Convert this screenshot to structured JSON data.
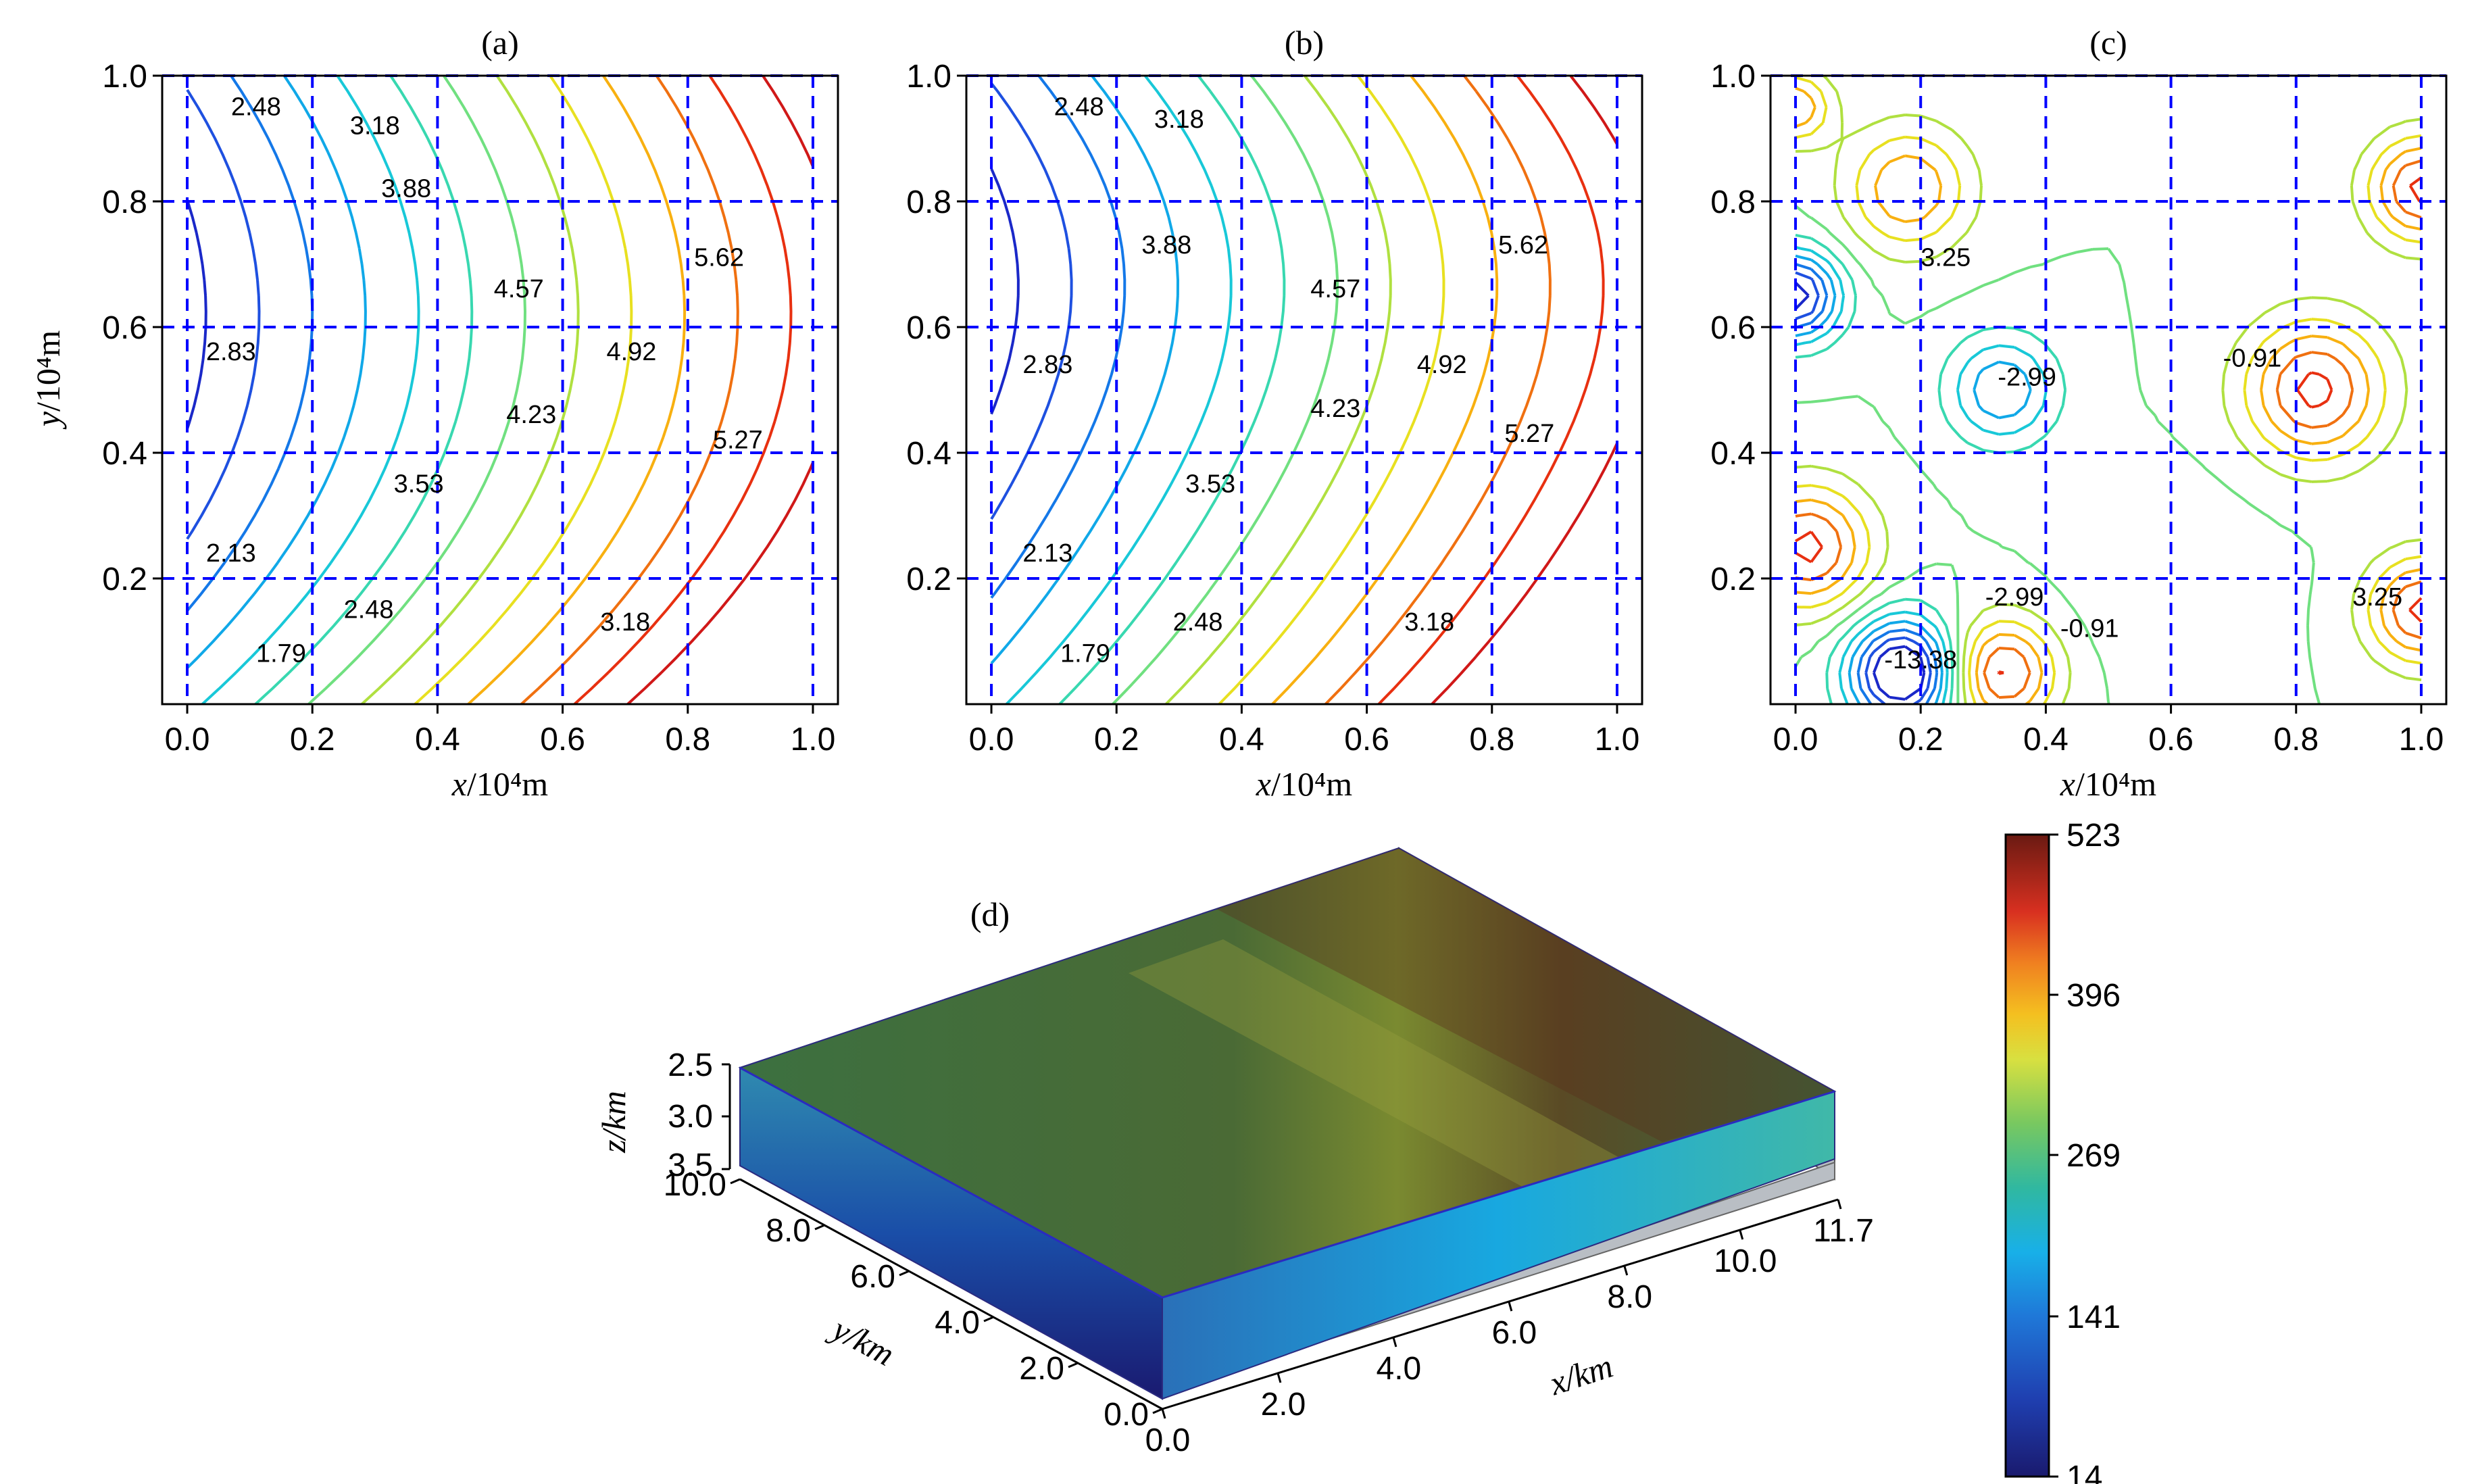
{
  "panels": [
    {
      "id": "a",
      "title": "(a)",
      "xlabel_var": "x",
      "xlabel_unit": "/10⁴m",
      "ylabel_var": "y",
      "ylabel_unit": "/10⁴m",
      "xticks": [
        "0.0",
        "0.2",
        "0.4",
        "0.6",
        "0.8",
        "1.0"
      ],
      "yticks": [
        "1.0",
        "0.8",
        "0.6",
        "0.4",
        "0.2"
      ],
      "labels": [
        {
          "text": "2.48",
          "x": 0.11,
          "y": 0.95
        },
        {
          "text": "3.18",
          "x": 0.3,
          "y": 0.92
        },
        {
          "text": "3.88",
          "x": 0.35,
          "y": 0.82
        },
        {
          "text": "4.57",
          "x": 0.53,
          "y": 0.66
        },
        {
          "text": "5.62",
          "x": 0.85,
          "y": 0.71
        },
        {
          "text": "2.83",
          "x": 0.07,
          "y": 0.56
        },
        {
          "text": "4.92",
          "x": 0.71,
          "y": 0.56
        },
        {
          "text": "4.23",
          "x": 0.55,
          "y": 0.46
        },
        {
          "text": "5.27",
          "x": 0.88,
          "y": 0.42
        },
        {
          "text": "3.53",
          "x": 0.37,
          "y": 0.35
        },
        {
          "text": "2.13",
          "x": 0.07,
          "y": 0.24
        },
        {
          "text": "2.48",
          "x": 0.29,
          "y": 0.15
        },
        {
          "text": "3.18",
          "x": 0.7,
          "y": 0.13
        },
        {
          "text": "1.79",
          "x": 0.15,
          "y": 0.08
        }
      ]
    },
    {
      "id": "b",
      "title": "(b)",
      "xlabel_var": "x",
      "xlabel_unit": "/10⁴m",
      "xticks": [
        "0.0",
        "0.2",
        "0.4",
        "0.6",
        "0.8",
        "1.0"
      ],
      "yticks": [
        "1.0",
        "0.8",
        "0.6",
        "0.4",
        "0.2"
      ],
      "labels": [
        {
          "text": "2.48",
          "x": 0.14,
          "y": 0.95
        },
        {
          "text": "3.18",
          "x": 0.3,
          "y": 0.93
        },
        {
          "text": "3.88",
          "x": 0.28,
          "y": 0.73
        },
        {
          "text": "4.57",
          "x": 0.55,
          "y": 0.66
        },
        {
          "text": "5.62",
          "x": 0.85,
          "y": 0.73
        },
        {
          "text": "2.83",
          "x": 0.09,
          "y": 0.54
        },
        {
          "text": "4.92",
          "x": 0.72,
          "y": 0.54
        },
        {
          "text": "4.23",
          "x": 0.55,
          "y": 0.47
        },
        {
          "text": "5.27",
          "x": 0.86,
          "y": 0.43
        },
        {
          "text": "3.53",
          "x": 0.35,
          "y": 0.35
        },
        {
          "text": "2.13",
          "x": 0.09,
          "y": 0.24
        },
        {
          "text": "2.48",
          "x": 0.33,
          "y": 0.13
        },
        {
          "text": "3.18",
          "x": 0.7,
          "y": 0.13
        },
        {
          "text": "1.79",
          "x": 0.15,
          "y": 0.08
        }
      ]
    },
    {
      "id": "c",
      "title": "(c)",
      "xlabel_var": "x",
      "xlabel_unit": "/10⁴m",
      "xticks": [
        "0.0",
        "0.2",
        "0.4",
        "0.6",
        "0.8",
        "1.0"
      ],
      "yticks": [
        "1.0",
        "0.8",
        "0.6",
        "0.4",
        "0.2"
      ],
      "labels": [
        {
          "text": "3.25",
          "x": 0.24,
          "y": 0.71
        },
        {
          "text": "-2.99",
          "x": 0.37,
          "y": 0.52
        },
        {
          "text": "-0.91",
          "x": 0.73,
          "y": 0.55
        },
        {
          "text": "-2.99",
          "x": 0.35,
          "y": 0.17
        },
        {
          "text": "-0.91",
          "x": 0.47,
          "y": 0.12
        },
        {
          "text": "-13.38",
          "x": 0.2,
          "y": 0.07
        },
        {
          "text": "3.25",
          "x": 0.93,
          "y": 0.17
        }
      ]
    }
  ],
  "panel_d": {
    "title": "(d)",
    "zlabel": "z/km",
    "ylabel": "y/km",
    "xlabel": "x/km",
    "zticks": [
      "2.5",
      "3.0",
      "3.5"
    ],
    "yticks": [
      "10.0",
      "8.0",
      "6.0",
      "4.0",
      "2.0",
      "0.0"
    ],
    "xticks": [
      "0.0",
      "2.0",
      "4.0",
      "6.0",
      "8.0",
      "10.0",
      "11.7"
    ]
  },
  "colorbar": {
    "ticks": [
      "523",
      "396",
      "269",
      "141",
      "14"
    ],
    "min": 14,
    "max": 523
  },
  "chart_data": [
    {
      "type": "contour",
      "panel": "(a)",
      "xlabel": "x/10⁴m",
      "ylabel": "y/10⁴m",
      "xlim": [
        0.0,
        1.0
      ],
      "ylim": [
        0.0,
        1.0
      ],
      "contour_levels": [
        1.79,
        2.13,
        2.48,
        2.83,
        3.18,
        3.53,
        3.88,
        4.23,
        4.57,
        4.92,
        5.27,
        5.62
      ],
      "grid": true
    },
    {
      "type": "contour",
      "panel": "(b)",
      "xlabel": "x/10⁴m",
      "xlim": [
        0.0,
        1.0
      ],
      "ylim": [
        0.0,
        1.0
      ],
      "contour_levels": [
        1.79,
        2.13,
        2.48,
        2.83,
        3.18,
        3.53,
        3.88,
        4.23,
        4.57,
        4.92,
        5.27,
        5.62
      ],
      "grid": true
    },
    {
      "type": "contour",
      "panel": "(c)",
      "xlabel": "x/10⁴m",
      "xlim": [
        0.0,
        1.0
      ],
      "ylim": [
        0.0,
        1.0
      ],
      "labeled_levels": [
        -13.38,
        -2.99,
        -0.91,
        3.25
      ],
      "grid": true
    },
    {
      "type": "heatmap",
      "panel": "(d)",
      "view": "3d-block",
      "xlabel": "x/km",
      "ylabel": "y/km",
      "zlabel": "z/km",
      "xlim": [
        0.0,
        11.7
      ],
      "ylim": [
        0.0,
        10.0
      ],
      "zlim": [
        2.5,
        3.5
      ],
      "colorbar_range": [
        14,
        523
      ],
      "colorbar_ticks": [
        523,
        396,
        269,
        141,
        14
      ]
    }
  ]
}
